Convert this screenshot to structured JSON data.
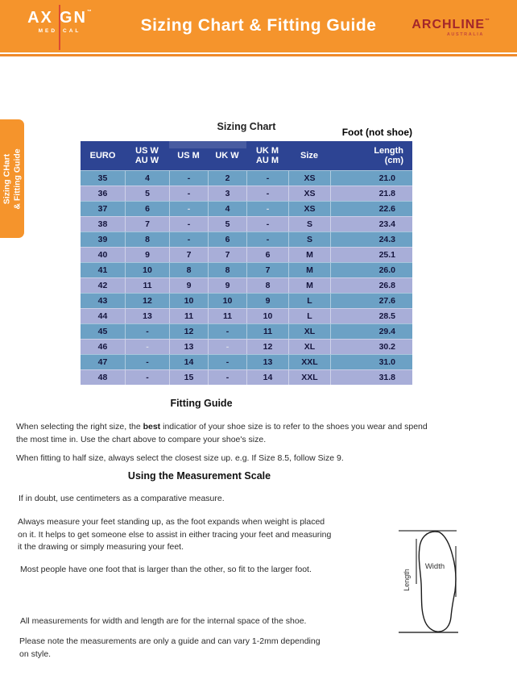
{
  "header": {
    "axign": {
      "part1": "AX",
      "part2": "GN",
      "tm": "™",
      "sub1": "MED",
      "sub2": "CAL"
    },
    "title": "Sizing Chart & Fitting Guide",
    "archline": {
      "name": "ARCHLINE",
      "tm": "™",
      "sub": "AUSTRALIA"
    }
  },
  "sidebar_tab": {
    "line1": "Sizing CHart",
    "line2": "& Fitting Guide"
  },
  "table": {
    "title": "Sizing Chart",
    "note": "Foot (not shoe)",
    "headers": [
      "EURO",
      "US W\nAU W",
      "US M",
      "UK W",
      "UK M\nAU M",
      "Size",
      "Length\n(cm)"
    ],
    "rows": [
      [
        "35",
        "4",
        "-",
        "2",
        "-",
        "XS",
        "21.0"
      ],
      [
        "36",
        "5",
        "-",
        "3",
        "-",
        "XS",
        "21.8"
      ],
      [
        "37",
        "6",
        "-",
        "4",
        "-",
        "XS",
        "22.6"
      ],
      [
        "38",
        "7",
        "-",
        "5",
        "-",
        "S",
        "23.4"
      ],
      [
        "39",
        "8",
        "-",
        "6",
        "-",
        "S",
        "24.3"
      ],
      [
        "40",
        "9",
        "7",
        "7",
        "6",
        "M",
        "25.1"
      ],
      [
        "41",
        "10",
        "8",
        "8",
        "7",
        "M",
        "26.0"
      ],
      [
        "42",
        "11",
        "9",
        "9",
        "8",
        "M",
        "26.8"
      ],
      [
        "43",
        "12",
        "10",
        "10",
        "9",
        "L",
        "27.6"
      ],
      [
        "44",
        "13",
        "11",
        "11",
        "10",
        "L",
        "28.5"
      ],
      [
        "45",
        "-",
        "12",
        "-",
        "11",
        "XL",
        "29.4"
      ],
      [
        "46",
        "-",
        "13",
        "-",
        "12",
        "XL",
        "30.2"
      ],
      [
        "47",
        "-",
        "14",
        "-",
        "13",
        "XXL",
        "31.0"
      ],
      [
        "48",
        "-",
        "15",
        "-",
        "14",
        "XXL",
        "31.8"
      ]
    ],
    "muted_dash_rows": [
      "37",
      "46"
    ]
  },
  "fitting_guide": {
    "heading": "Fitting Guide",
    "p1_before": "When selecting the right size, the ",
    "p1_bold": "best",
    "p1_after": " indicatior of your shoe size is to refer to the shoes you wear and spend\nthe most time in. Use the chart above to compare your shoe's size.",
    "p2": "When fitting to half size, always select the closest size up. e.g. If Size 8.5, follow Size 9."
  },
  "measurement": {
    "heading": "Using the Measurement Scale",
    "p1": "If in doubt, use centimeters as a comparative measure.",
    "p2": "Always measure your feet standing up, as the foot expands when weight is placed\non it. It helps to get someone else to assist in either tracing your feet and measuring\nit the drawing or simply measuring your feet.",
    "p3": "Most people have one foot that is larger than the other, so fit to the larger foot.",
    "p4": "All measurements for width and length are for the internal space of the shoe.",
    "p5": "Please note the measurements are only a guide and can vary 1-2mm depending\non style."
  },
  "diagram": {
    "width_label": "Width",
    "length_label": "Length"
  },
  "colors": {
    "banner_orange": "#F5942C",
    "rule_orange": "#EF8A2A",
    "table_header_navy": "#2D4493",
    "row_steel_blue": "#6CA1C5",
    "row_lavender": "#A8AED8",
    "archline_red": "#A3262A",
    "axign_line_red": "#DC4B32"
  }
}
